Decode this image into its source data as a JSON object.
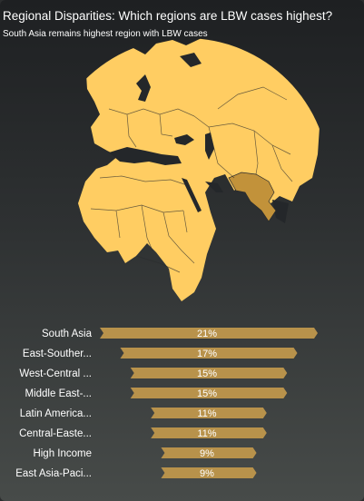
{
  "header": {
    "title": "Regional Disparities: Which regions are LBW cases highest?",
    "subtitle": "South Asia remains highest region with LBW cases"
  },
  "colors": {
    "land": "#ffcd62",
    "highlight": "#c2923a",
    "bar": "#b8924b",
    "ocean": "#24272a"
  },
  "chart_data": {
    "type": "bar",
    "orientation": "horizontal",
    "categories": [
      "South Asia",
      "East-Souther...",
      "West-Central ...",
      "Middle East-...",
      "Latin America...",
      "Central-Easte...",
      "High Income",
      "East Asia-Paci..."
    ],
    "values": [
      21,
      17,
      15,
      15,
      11,
      11,
      9,
      9
    ],
    "labels": [
      "21%",
      "17%",
      "15%",
      "15%",
      "11%",
      "11%",
      "9%",
      "9%"
    ],
    "xlim": [
      0,
      21
    ]
  }
}
